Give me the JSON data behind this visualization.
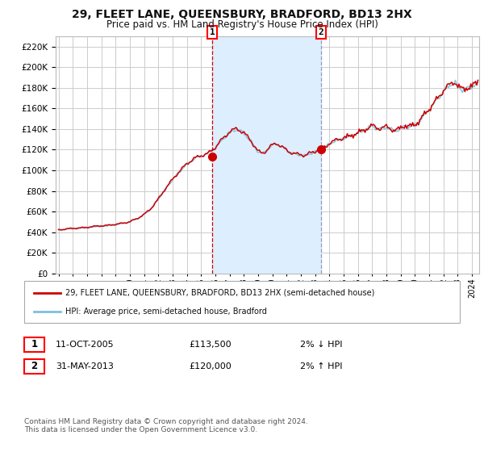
{
  "title": "29, FLEET LANE, QUEENSBURY, BRADFORD, BD13 2HX",
  "subtitle": "Price paid vs. HM Land Registry's House Price Index (HPI)",
  "legend_line1": "29, FLEET LANE, QUEENSBURY, BRADFORD, BD13 2HX (semi-detached house)",
  "legend_line2": "HPI: Average price, semi-detached house, Bradford",
  "marker1_date": "11-OCT-2005",
  "marker1_price": 113500,
  "marker1_label": "2% ↓ HPI",
  "marker2_date": "31-MAY-2013",
  "marker2_price": 120000,
  "marker2_label": "2% ↑ HPI",
  "footer": "Contains HM Land Registry data © Crown copyright and database right 2024.\nThis data is licensed under the Open Government Licence v3.0.",
  "hpi_color": "#7fbfdf",
  "price_color": "#cc0000",
  "marker_color": "#cc0000",
  "vline1_color": "#cc0000",
  "vline2_color": "#9999bb",
  "shade_color": "#ddeeff",
  "background_color": "#ffffff",
  "plot_bg_color": "#ffffff",
  "grid_color": "#cccccc",
  "ylim": [
    0,
    230000
  ],
  "yticks": [
    0,
    20000,
    40000,
    60000,
    80000,
    100000,
    120000,
    140000,
    160000,
    180000,
    200000,
    220000
  ],
  "marker1_x": 2005.79,
  "marker2_x": 2013.42,
  "xmin": 1994.8,
  "xmax": 2024.5
}
